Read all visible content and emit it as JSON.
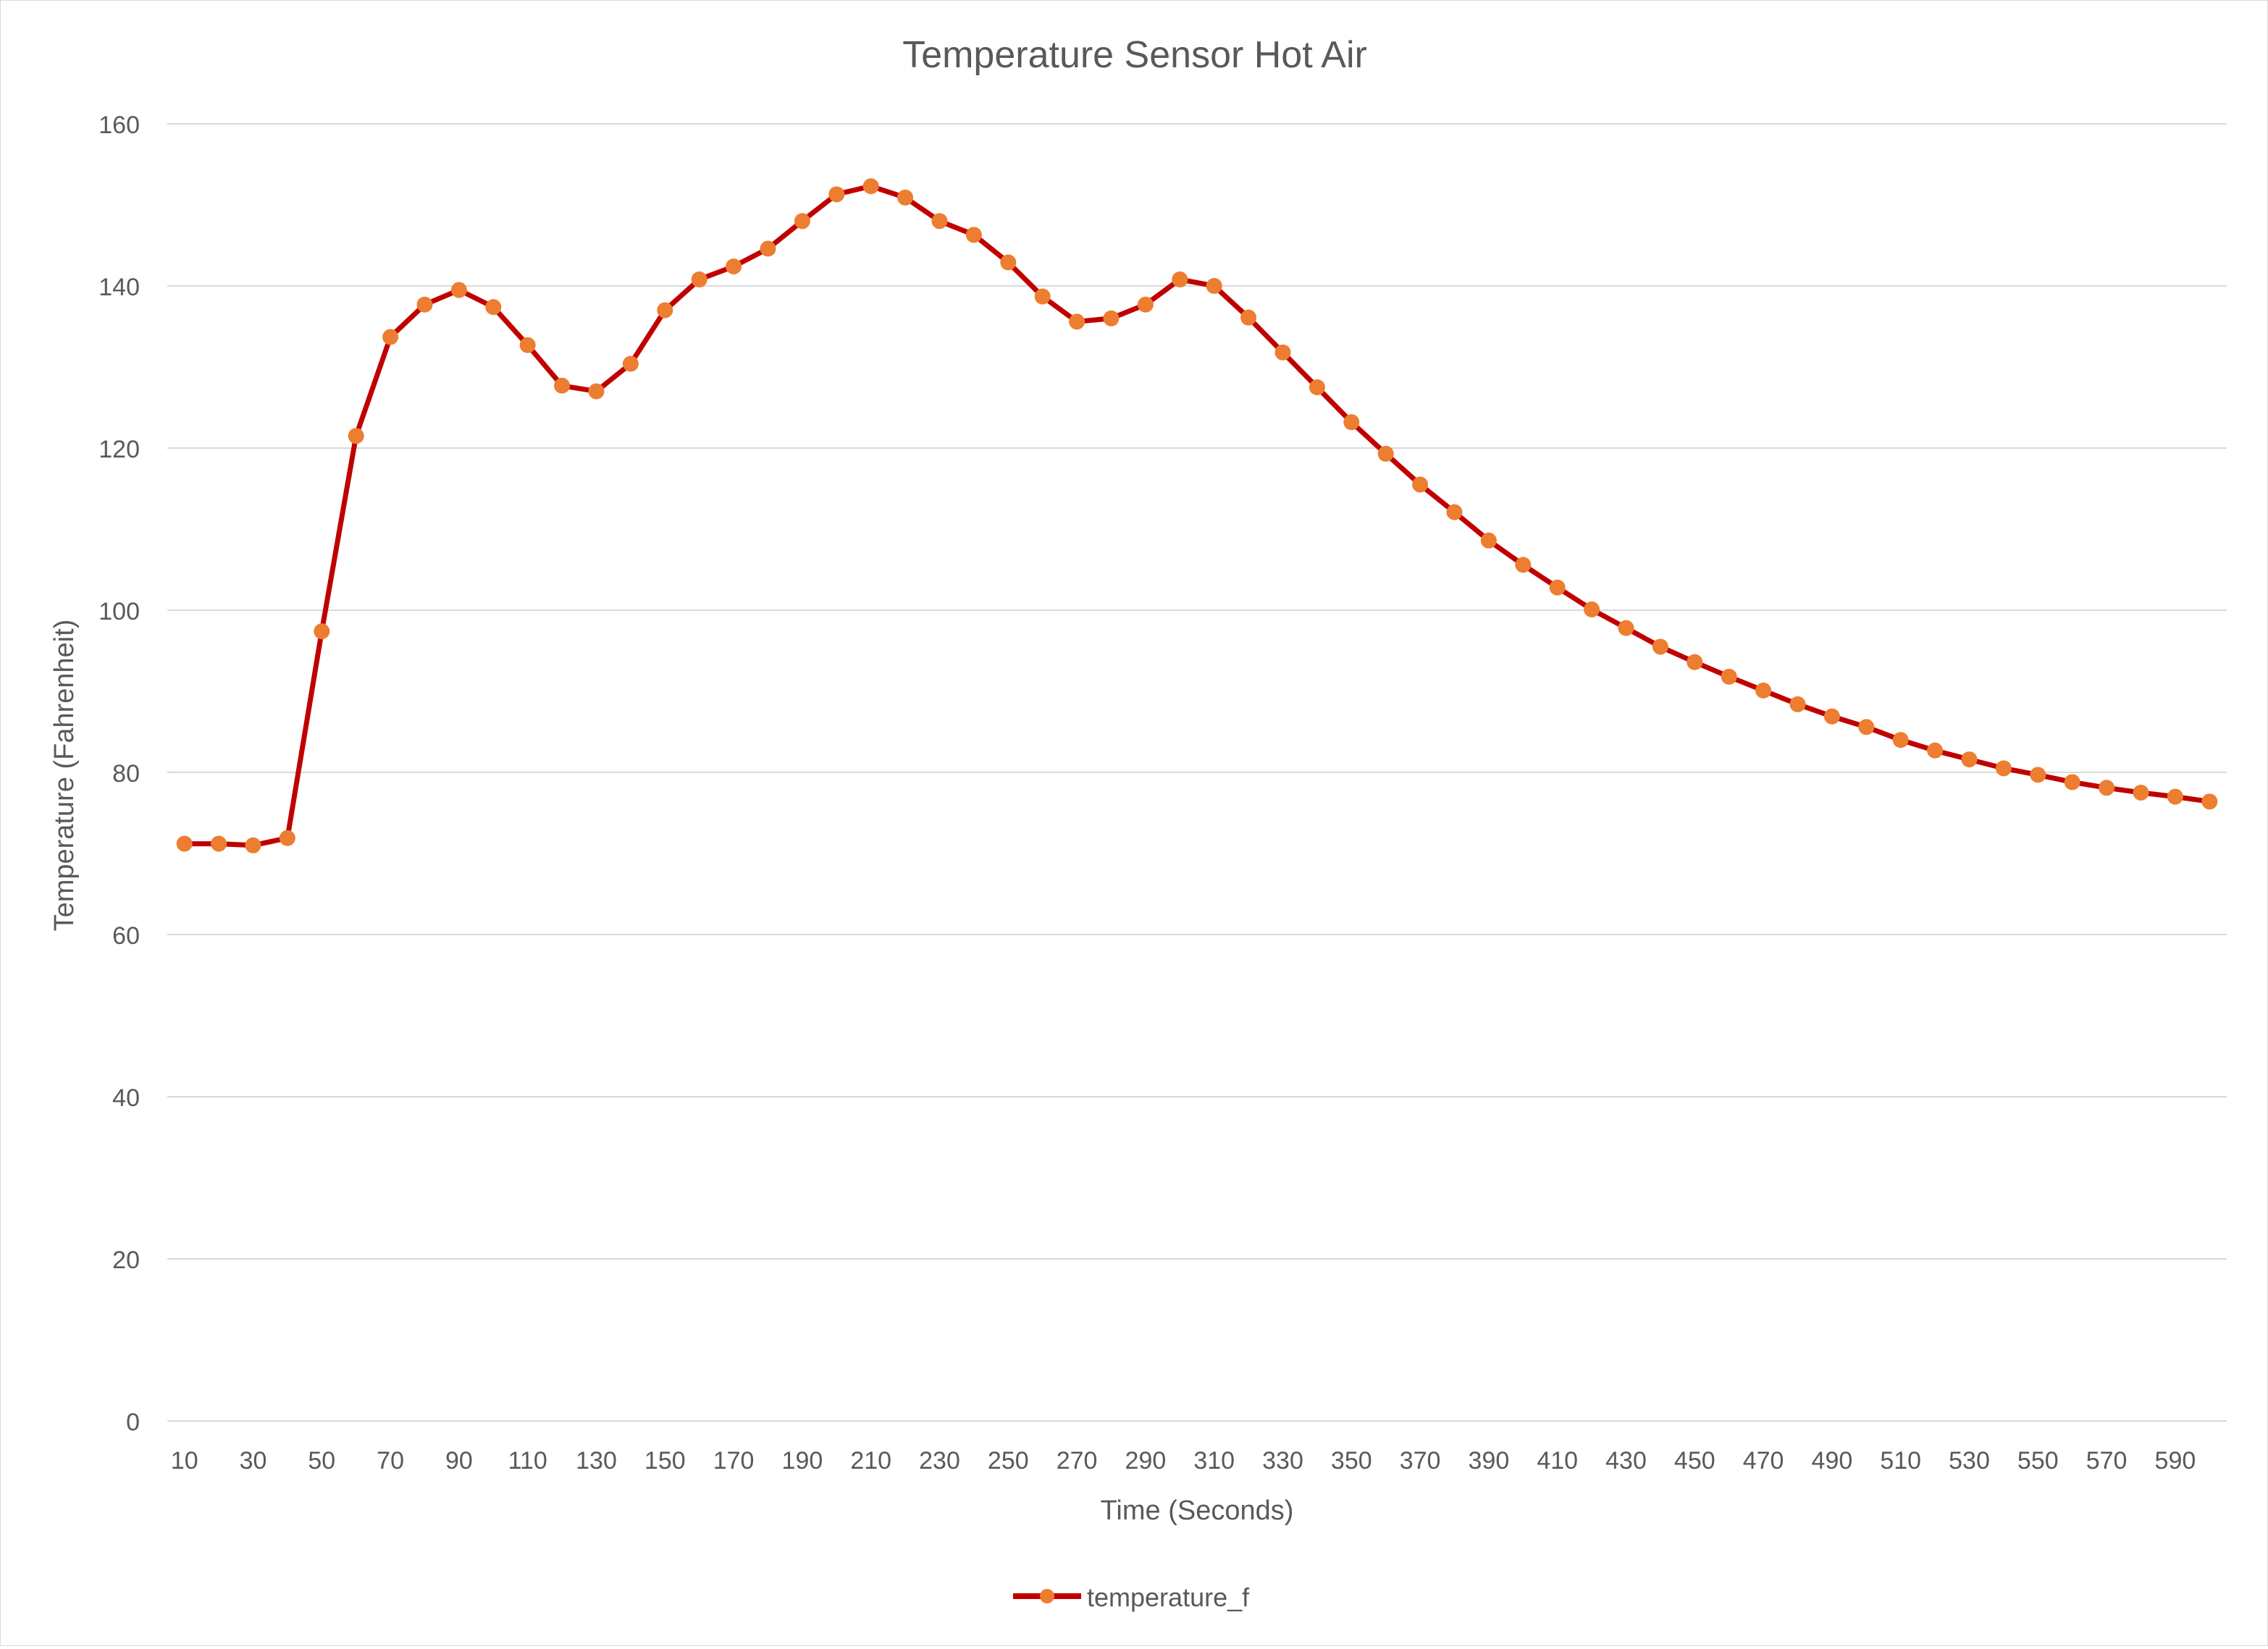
{
  "chart_data": {
    "type": "line",
    "title": "Temperature Sensor Hot Air",
    "xlabel": "Time (Seconds)",
    "ylabel": "Temperature (Fahrenheit)",
    "ylim": [
      0,
      160
    ],
    "y_ticks": [
      0,
      20,
      40,
      60,
      80,
      100,
      120,
      140,
      160
    ],
    "x_tick_labels": [
      "10",
      "30",
      "50",
      "70",
      "90",
      "110",
      "130",
      "150",
      "170",
      "190",
      "210",
      "230",
      "250",
      "270",
      "290",
      "310",
      "330",
      "350",
      "370",
      "390",
      "410",
      "430",
      "450",
      "470",
      "490",
      "510",
      "530",
      "550",
      "570",
      "590"
    ],
    "grid": "horizontal",
    "legend_position": "bottom",
    "line_color": "#c00000",
    "marker_color": "#ed7d31",
    "x": [
      10,
      20,
      30,
      40,
      50,
      60,
      70,
      80,
      90,
      100,
      110,
      120,
      130,
      140,
      150,
      160,
      170,
      180,
      190,
      200,
      210,
      220,
      230,
      240,
      250,
      260,
      270,
      280,
      290,
      300,
      310,
      320,
      330,
      340,
      350,
      360,
      370,
      380,
      390,
      400,
      410,
      420,
      430,
      440,
      450,
      460,
      470,
      480,
      490,
      500,
      510,
      520,
      530,
      540,
      550,
      560,
      570,
      580,
      590,
      600
    ],
    "series": [
      {
        "name": "temperature_f",
        "values": [
          71.2,
          71.2,
          71.0,
          71.9,
          97.4,
          121.5,
          133.7,
          137.7,
          139.5,
          137.4,
          132.7,
          127.7,
          127.0,
          130.4,
          137.0,
          140.8,
          142.4,
          144.6,
          148.0,
          151.3,
          152.3,
          150.9,
          148.0,
          146.3,
          142.9,
          138.7,
          135.6,
          136.0,
          137.7,
          140.8,
          140.0,
          136.1,
          131.8,
          127.5,
          123.2,
          119.3,
          115.5,
          112.1,
          108.6,
          105.6,
          102.8,
          100.1,
          97.8,
          95.5,
          93.6,
          91.8,
          90.1,
          88.4,
          86.9,
          85.6,
          84.0,
          82.7,
          81.6,
          80.5,
          79.7,
          78.8,
          78.1,
          77.5,
          77.0,
          76.4
        ]
      }
    ]
  }
}
